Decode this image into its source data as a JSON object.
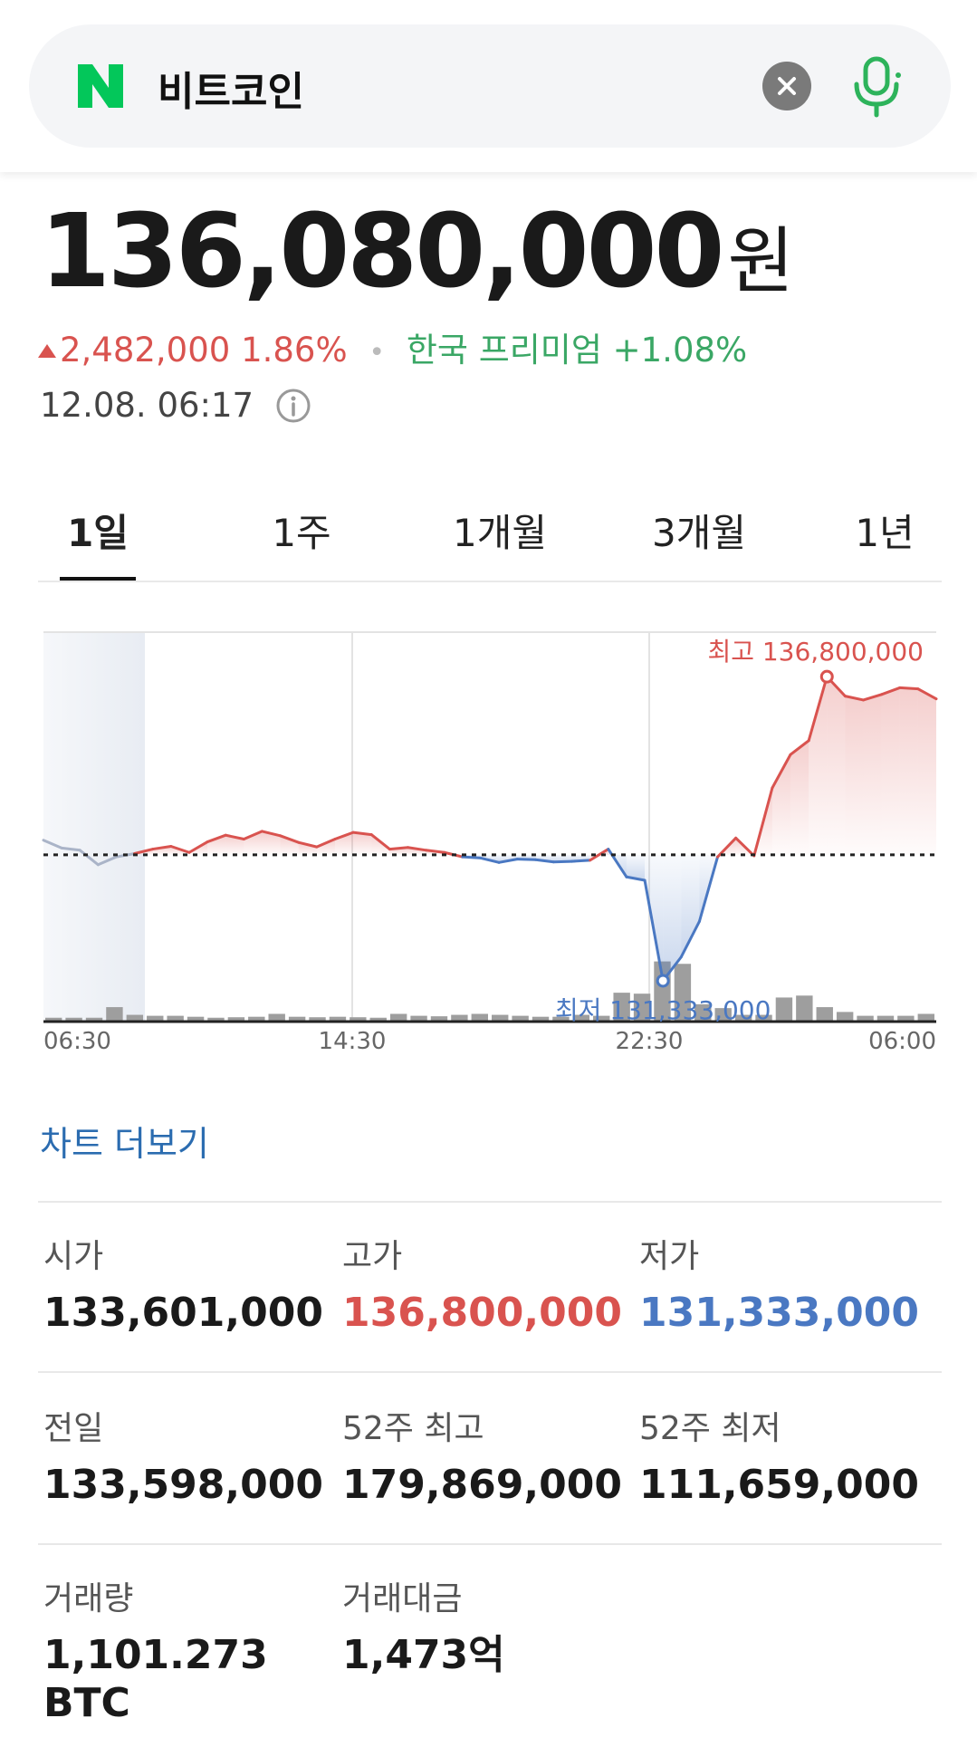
{
  "search": {
    "query": "비트코인"
  },
  "quote": {
    "price": "136,080,000",
    "unit": "원",
    "change": "2,482,000",
    "change_pct": "1.86%",
    "premium_label": "한국 프리미엄",
    "premium_value": "+1.08%",
    "timestamp": "12.08. 06:17"
  },
  "tabs": [
    {
      "label": "1일",
      "active": true
    },
    {
      "label": "1주",
      "active": false
    },
    {
      "label": "1개월",
      "active": false
    },
    {
      "label": "3개월",
      "active": false
    },
    {
      "label": "1년",
      "active": false
    }
  ],
  "chart_data": {
    "type": "line",
    "x_ticks": [
      "06:30",
      "14:30",
      "22:30",
      "06:00"
    ],
    "baseline": 133598000,
    "ylim": [
      130600000,
      137600000
    ],
    "high_label": "최고 136,800,000",
    "low_label": "최저 131,333,000",
    "high": 136800000,
    "low": 131333000,
    "colors": {
      "up": "#d9534f",
      "down": "#4a78c2",
      "pre": "#aab4c8"
    },
    "price_series": [
      [
        0,
        133860000
      ],
      [
        1,
        133720000
      ],
      [
        2,
        133680000
      ],
      [
        3,
        133420000
      ],
      [
        4,
        133560000
      ],
      [
        5,
        133620000
      ],
      [
        6,
        133700000
      ],
      [
        7,
        133750000
      ],
      [
        8,
        133640000
      ],
      [
        9,
        133830000
      ],
      [
        10,
        133950000
      ],
      [
        11,
        133880000
      ],
      [
        12,
        134020000
      ],
      [
        13,
        133940000
      ],
      [
        14,
        133820000
      ],
      [
        15,
        133740000
      ],
      [
        16,
        133880000
      ],
      [
        17,
        134000000
      ],
      [
        18,
        133960000
      ],
      [
        19,
        133700000
      ],
      [
        20,
        133730000
      ],
      [
        21,
        133680000
      ],
      [
        22,
        133640000
      ],
      [
        23,
        133560000
      ],
      [
        24,
        133540000
      ],
      [
        25,
        133460000
      ],
      [
        26,
        133520000
      ],
      [
        27,
        133510000
      ],
      [
        28,
        133470000
      ],
      [
        29,
        133480000
      ],
      [
        30,
        133500000
      ],
      [
        31,
        133700000
      ],
      [
        32,
        133200000
      ],
      [
        33,
        133140000
      ],
      [
        34,
        131333000
      ],
      [
        35,
        131760000
      ],
      [
        36,
        132400000
      ],
      [
        37,
        133560000
      ],
      [
        38,
        133900000
      ],
      [
        39,
        133580000
      ],
      [
        40,
        134800000
      ],
      [
        41,
        135400000
      ],
      [
        42,
        135650000
      ],
      [
        43,
        136800000
      ],
      [
        44,
        136450000
      ],
      [
        45,
        136380000
      ],
      [
        46,
        136480000
      ],
      [
        47,
        136600000
      ],
      [
        48,
        136580000
      ],
      [
        49,
        136400000
      ]
    ],
    "volume": [
      0.8,
      0.8,
      0.8,
      3.0,
      1.4,
      1.2,
      1.2,
      1.0,
      0.8,
      0.9,
      1.0,
      1.6,
      1.0,
      0.9,
      1.0,
      0.9,
      0.8,
      1.6,
      1.2,
      1.1,
      1.4,
      1.6,
      1.4,
      1.2,
      1.0,
      1.0,
      1.4,
      1.2,
      6.0,
      5.8,
      12.5,
      12.0,
      3.6,
      2.8,
      1.4,
      1.4,
      5.0,
      5.4,
      3.0,
      2.0,
      1.2,
      1.2,
      1.2,
      1.6
    ]
  },
  "chart_more": "차트 더보기",
  "stats": [
    {
      "label": "시가",
      "value": "133,601,000",
      "tone": ""
    },
    {
      "label": "고가",
      "value": "136,800,000",
      "tone": "red"
    },
    {
      "label": "저가",
      "value": "131,333,000",
      "tone": "blue"
    },
    {
      "label": "전일",
      "value": "133,598,000",
      "tone": ""
    },
    {
      "label": "52주 최고",
      "value": "179,869,000",
      "tone": ""
    },
    {
      "label": "52주 최저",
      "value": "111,659,000",
      "tone": ""
    },
    {
      "label": "거래량",
      "value": "1,101.273 BTC",
      "tone": ""
    },
    {
      "label": "거래대금",
      "value": "1,473억",
      "tone": ""
    }
  ]
}
